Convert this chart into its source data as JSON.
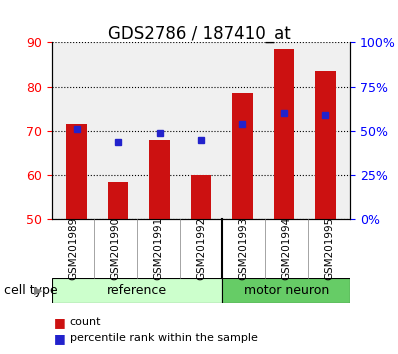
{
  "title": "GDS2786 / 187410_at",
  "samples": [
    "GSM201989",
    "GSM201990",
    "GSM201991",
    "GSM201992",
    "GSM201993",
    "GSM201994",
    "GSM201995"
  ],
  "count_values": [
    71.5,
    58.5,
    68.0,
    60.0,
    78.5,
    88.5,
    83.5
  ],
  "percentile_values": [
    70.5,
    67.5,
    69.5,
    68.0,
    71.5,
    74.0,
    73.5
  ],
  "ylim_left": [
    50,
    90
  ],
  "ylim_right": [
    0,
    100
  ],
  "yticks_left": [
    50,
    60,
    70,
    80,
    90
  ],
  "yticks_right": [
    0,
    25,
    50,
    75,
    100
  ],
  "ytick_right_labels": [
    "0%",
    "25%",
    "50%",
    "75%",
    "100%"
  ],
  "bar_bottom": 50,
  "bar_color": "#cc1111",
  "percentile_color": "#2222cc",
  "plot_bg_color": "#f0f0f0",
  "reference_bg": "#ccffcc",
  "motor_neuron_bg": "#66cc66",
  "n_reference": 4,
  "n_motor_neuron": 3,
  "xlabel_area_bg": "#d3d3d3",
  "title_fontsize": 12,
  "bar_width": 0.5
}
